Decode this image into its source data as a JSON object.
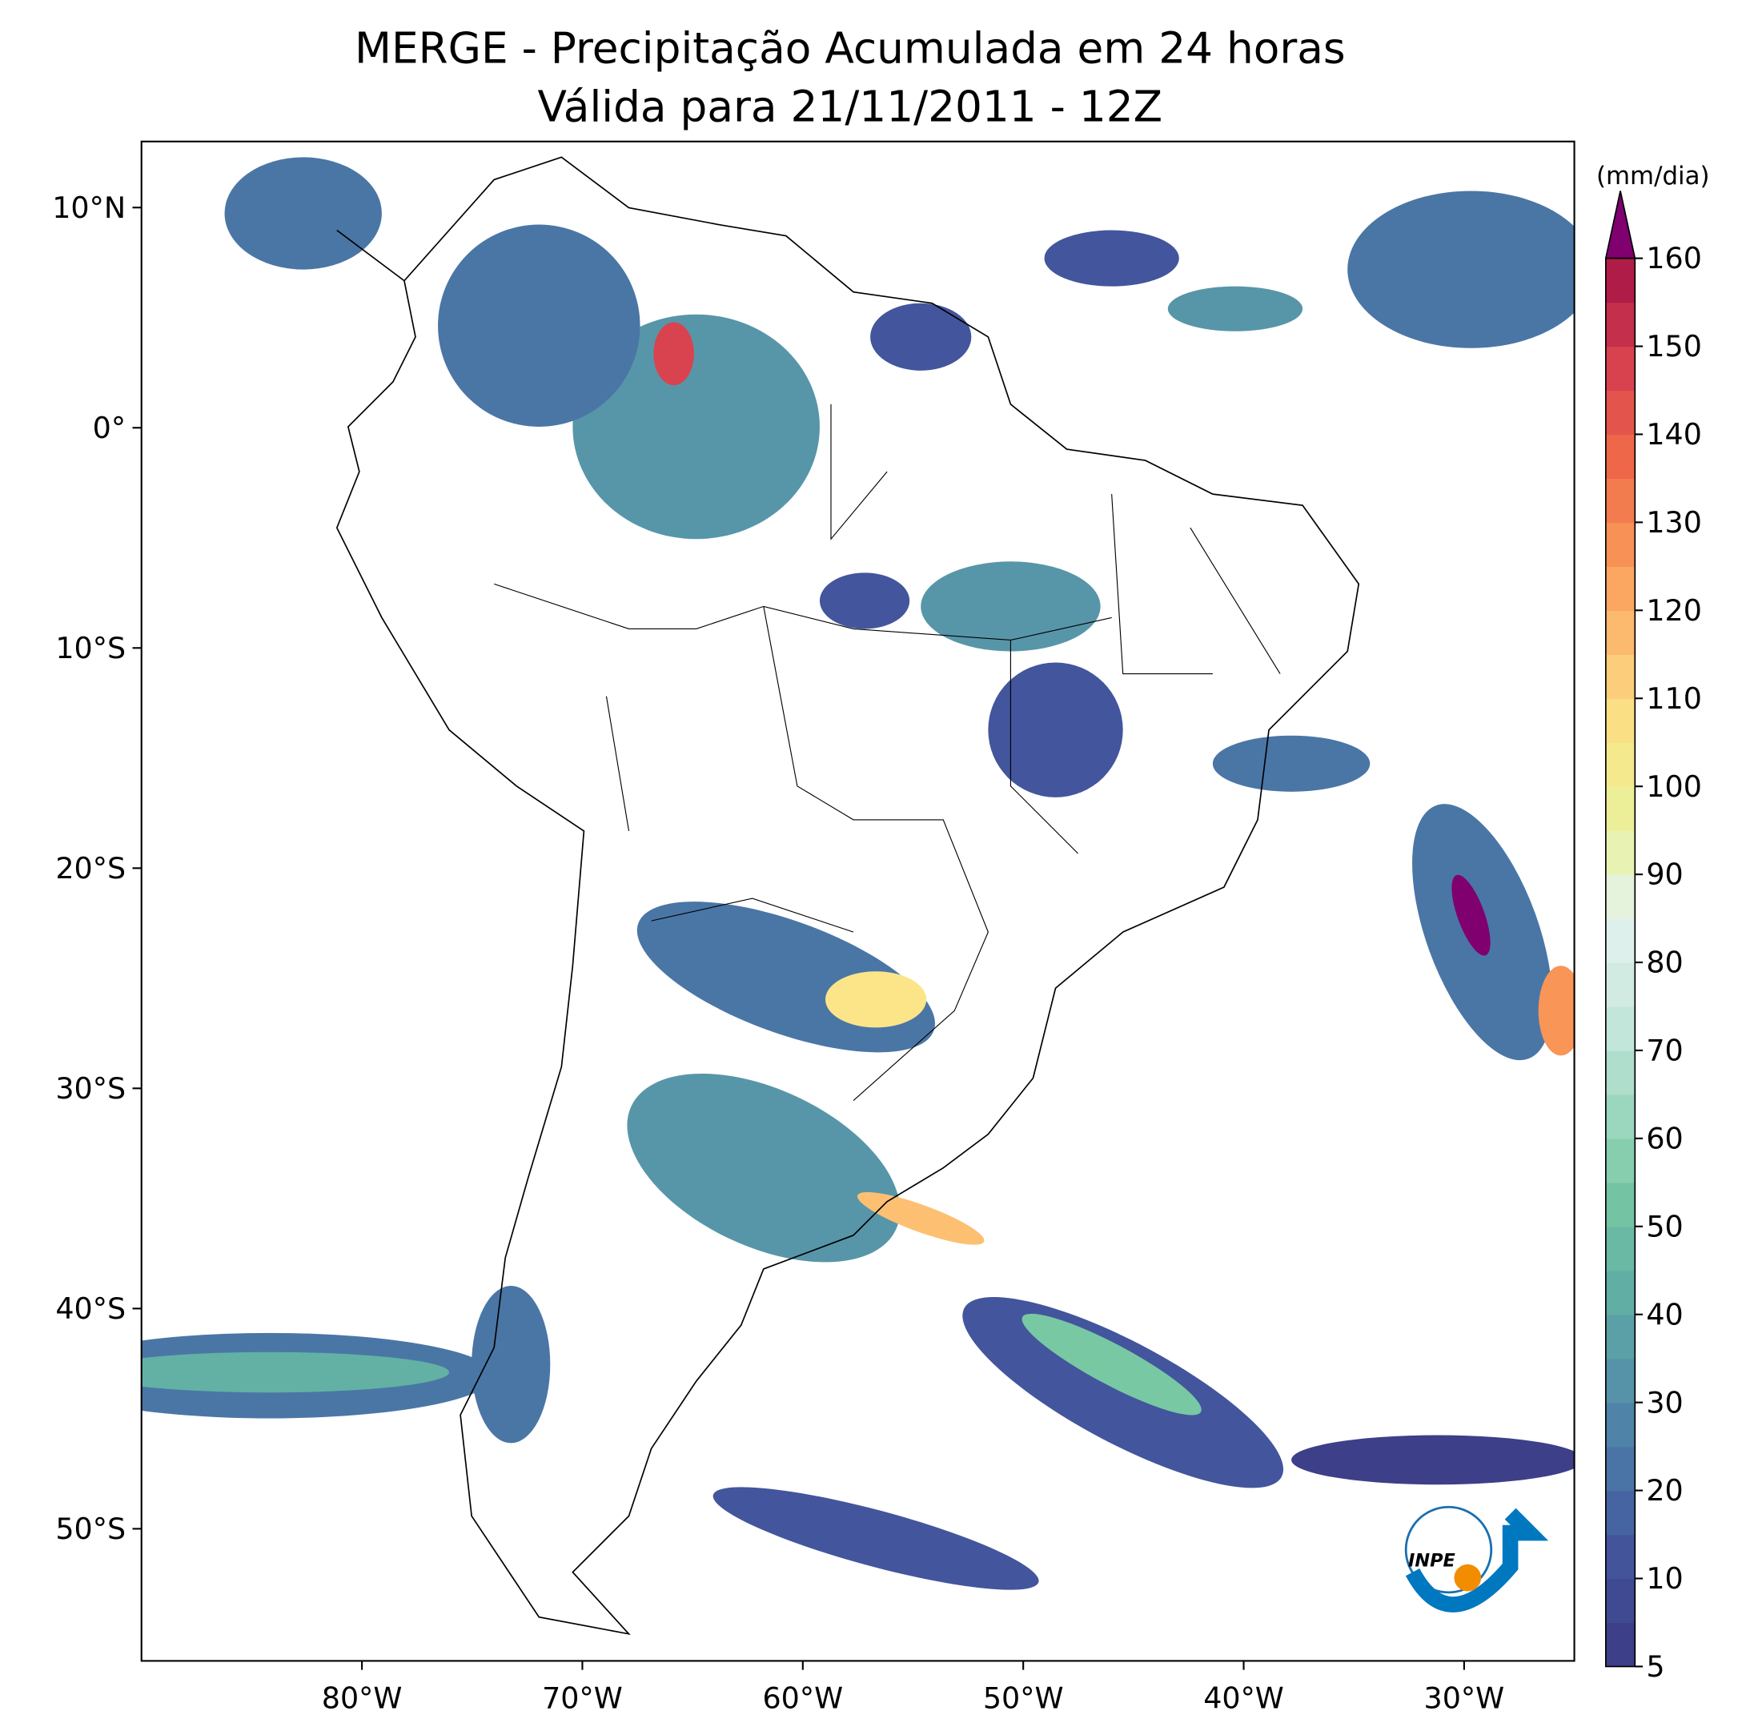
{
  "chart_data": {
    "type": "map",
    "title": "MERGE - Precipitação Acumulada em 24 horas",
    "subtitle": "Válida para 21/11/2011 - 12Z",
    "xlim": [
      -90,
      -25
    ],
    "ylim": [
      -56,
      13
    ],
    "xticks": [
      {
        "value": -80,
        "label": "80°W"
      },
      {
        "value": -70,
        "label": "70°W"
      },
      {
        "value": -60,
        "label": "60°W"
      },
      {
        "value": -50,
        "label": "50°W"
      },
      {
        "value": -40,
        "label": "40°W"
      },
      {
        "value": -30,
        "label": "30°W"
      }
    ],
    "yticks": [
      {
        "value": 10,
        "label": "10°N"
      },
      {
        "value": 0,
        "label": "0°"
      },
      {
        "value": -10,
        "label": "10°S"
      },
      {
        "value": -20,
        "label": "20°S"
      },
      {
        "value": -30,
        "label": "30°S"
      },
      {
        "value": -40,
        "label": "40°S"
      },
      {
        "value": -50,
        "label": "50°S"
      }
    ],
    "colorbar": {
      "unit": "(mm/dia)",
      "levels": [
        5,
        7,
        10,
        15,
        20,
        25,
        30,
        35,
        40,
        45,
        50,
        55,
        60,
        65,
        70,
        75,
        80,
        85,
        90,
        95,
        100,
        105,
        110,
        115,
        120,
        125,
        130,
        135,
        140,
        145,
        150,
        155,
        160
      ],
      "ticks": [
        5,
        10,
        20,
        30,
        40,
        50,
        60,
        70,
        80,
        90,
        100,
        110,
        120,
        130,
        140,
        150,
        160
      ],
      "colors": [
        "#3d3f88",
        "#43559c",
        "#4a76a6",
        "#5796a8",
        "#62b1a4",
        "#78c8a4",
        "#a3dac4",
        "#cbe9df",
        "#e4f2ef",
        "#e9f29b",
        "#fbe588",
        "#fdc072",
        "#f99557",
        "#ef6a48",
        "#d9434f",
        "#b01c48"
      ],
      "extend_color": "#800070"
    },
    "logo_text": "INPE"
  }
}
